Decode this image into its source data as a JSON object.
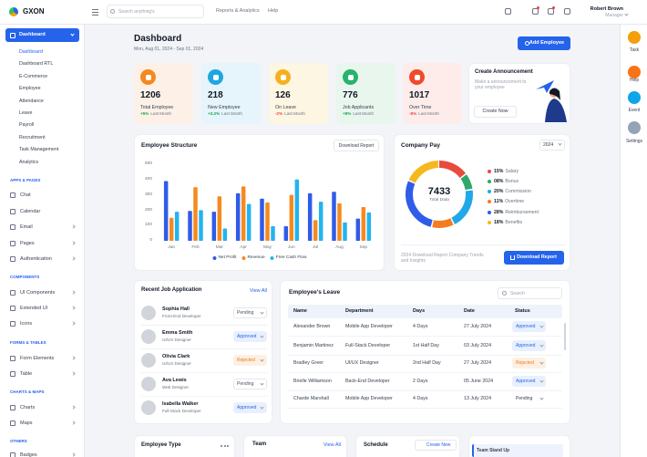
{
  "brand": "GXON",
  "search_placeholder": "Search anything's",
  "top_links": [
    "Reports & Analytics",
    "Help"
  ],
  "user": {
    "name": "Robert Brown",
    "role": "Manager"
  },
  "sidebar": {
    "active": "Dashboard",
    "dashboard_items": [
      "Dashboard",
      "Dashboard RTL",
      "E-Commerce",
      "Employee",
      "Attendance",
      "Leave",
      "Payroll",
      "Recruitment",
      "Task Management",
      "Analytics"
    ],
    "sections": [
      {
        "title": "APPS & PAGES",
        "items": [
          "Chat",
          "Calendar",
          "Email",
          "Pages",
          "Authentication"
        ]
      },
      {
        "title": "COMPONENTS",
        "items": [
          "UI Components",
          "Extended UI",
          "Icons"
        ]
      },
      {
        "title": "FORMS & TABLES",
        "items": [
          "Form Elements",
          "Table"
        ]
      },
      {
        "title": "CHARTS & MAPS",
        "items": [
          "Charts",
          "Maps"
        ]
      },
      {
        "title": "OTHERS",
        "items": [
          "Badges"
        ]
      }
    ]
  },
  "right_rail": [
    "Task",
    "Help",
    "Event",
    "Settings"
  ],
  "page": {
    "title": "Dashboard",
    "date_range": "Mon, Aug 01, 2024 - Sep 01, 2024",
    "button": "Add Employee"
  },
  "stats": [
    {
      "value": 1206,
      "label": "Total Employee",
      "change": "+5%",
      "note": "Last Month",
      "bg": "#fdf1e7",
      "icon_color": "#f5891f",
      "change_color": "#16a34a"
    },
    {
      "value": 218,
      "label": "New Employee",
      "change": "+3.2%",
      "note": "Last Month",
      "bg": "#e6f4fb",
      "icon_color": "#1ea7e0",
      "change_color": "#16a34a"
    },
    {
      "value": 126,
      "label": "On Leave",
      "change": "-2%",
      "note": "Last Month",
      "bg": "#fdf6e3",
      "icon_color": "#f5b01e",
      "change_color": "#ef4444"
    },
    {
      "value": 776,
      "label": "Job Applicants",
      "change": "+8%",
      "note": "Last Month",
      "bg": "#e8f6ee",
      "icon_color": "#27b36b",
      "change_color": "#16a34a"
    },
    {
      "value": 1017,
      "label": "Over Time",
      "change": "-8%",
      "note": "Last Month",
      "bg": "#fdecea",
      "icon_color": "#ee4b2b",
      "change_color": "#ef4444"
    }
  ],
  "announcement": {
    "title": "Create Announcement",
    "text": "Make a announcement to your employee",
    "button": "Create Now"
  },
  "employee_structure": {
    "type": "bar",
    "title": "Employee Structure",
    "button": "Download Report",
    "categories": [
      "Jan",
      "Feb",
      "Mar",
      "Apr",
      "May",
      "Jun",
      "Jul",
      "Aug",
      "Sep"
    ],
    "series": [
      {
        "name": "Net Profit",
        "color": "#2f5ce8",
        "values": [
          390,
          195,
          190,
          310,
          275,
          95,
          310,
          320,
          145
        ]
      },
      {
        "name": "Revenue",
        "color": "#f58a1f",
        "values": [
          150,
          350,
          290,
          355,
          250,
          300,
          135,
          245,
          220
        ]
      },
      {
        "name": "Free Cash Flow",
        "color": "#22b4f0",
        "values": [
          190,
          200,
          80,
          240,
          95,
          400,
          255,
          120,
          185
        ]
      }
    ],
    "ylim": [
      0,
      500
    ],
    "yticks": [
      0,
      100,
      200,
      300,
      400,
      500
    ]
  },
  "company_pay": {
    "type": "donut",
    "title": "Company Pay",
    "year": "2024",
    "total": 7433,
    "total_label": "Total Data",
    "categories": [
      "Salary",
      "Bonus",
      "Commission",
      "Overtime",
      "Reimbursement",
      "Benefits"
    ],
    "values": [
      15,
      8,
      20,
      11,
      28,
      18
    ],
    "value_labels": [
      "15%",
      "08%",
      "20%",
      "11%",
      "28%",
      "18%"
    ],
    "colors": [
      "#e94b3c",
      "#2ea86b",
      "#20a8e8",
      "#f57c1f",
      "#2f5ce8",
      "#f5b81e"
    ],
    "footnote": "2024 Download Report Company Trends and Insights",
    "button": "Download Report"
  },
  "recent_jobs": {
    "title": "Recent Job Application",
    "link": "View All",
    "rows": [
      {
        "name": "Sophia Hall",
        "role": "Front-End Developer",
        "status": "Pending",
        "color": "#4b5563",
        "bg": "#ffffff"
      },
      {
        "name": "Emma Smith",
        "role": "UI/UX Designer",
        "status": "Approved",
        "color": "#2563eb",
        "bg": "#e8f0fe"
      },
      {
        "name": "Olivia Clark",
        "role": "UI/UX Designer",
        "status": "Rejected",
        "color": "#ea7a1a",
        "bg": "#fdf0e3"
      },
      {
        "name": "Ava Lewis",
        "role": "Web Designer",
        "status": "Pending",
        "color": "#4b5563",
        "bg": "#ffffff"
      },
      {
        "name": "Isabella Walker",
        "role": "Full-Stack Developer",
        "status": "Approved",
        "color": "#2563eb",
        "bg": "#e8f0fe"
      }
    ]
  },
  "leave": {
    "title": "Employee's Leave",
    "search": "Search",
    "columns": [
      "Name",
      "Department",
      "Days",
      "Date",
      "Status"
    ],
    "rows": [
      {
        "cells": [
          "Alexander Brown",
          "Mobile App Developer",
          "4 Days",
          "27 July 2024",
          "Approved"
        ],
        "color": "#2563eb",
        "bg": "#e8f0fe"
      },
      {
        "cells": [
          "Benjamin Martinez",
          "Full-Stack Developer",
          "1st Half Day",
          "03 July 2024",
          "Approved"
        ],
        "color": "#2563eb",
        "bg": "#e8f0fe"
      },
      {
        "cells": [
          "Bradley Greer",
          "UI/UX Designer",
          "2nd Half Day",
          "27 July 2024",
          "Rejected"
        ],
        "color": "#ea7a1a",
        "bg": "#fdf0e3"
      },
      {
        "cells": [
          "Brielle Williamson",
          "Back-End Developer",
          "2 Days",
          "05 June 2024",
          "Approved"
        ],
        "color": "#2563eb",
        "bg": "#e8f0fe"
      },
      {
        "cells": [
          "Charde Marshall",
          "Mobile App Developer",
          "4 Days",
          "13 July 2024",
          "Pending"
        ],
        "color": "#374151",
        "bg": "#ffffff"
      }
    ]
  },
  "bottom": {
    "employee_type": "Employee Type",
    "team": "Team",
    "team_link": "View All",
    "schedule": "Schedule",
    "schedule_button": "Create New",
    "event": "Team Stand Up"
  }
}
